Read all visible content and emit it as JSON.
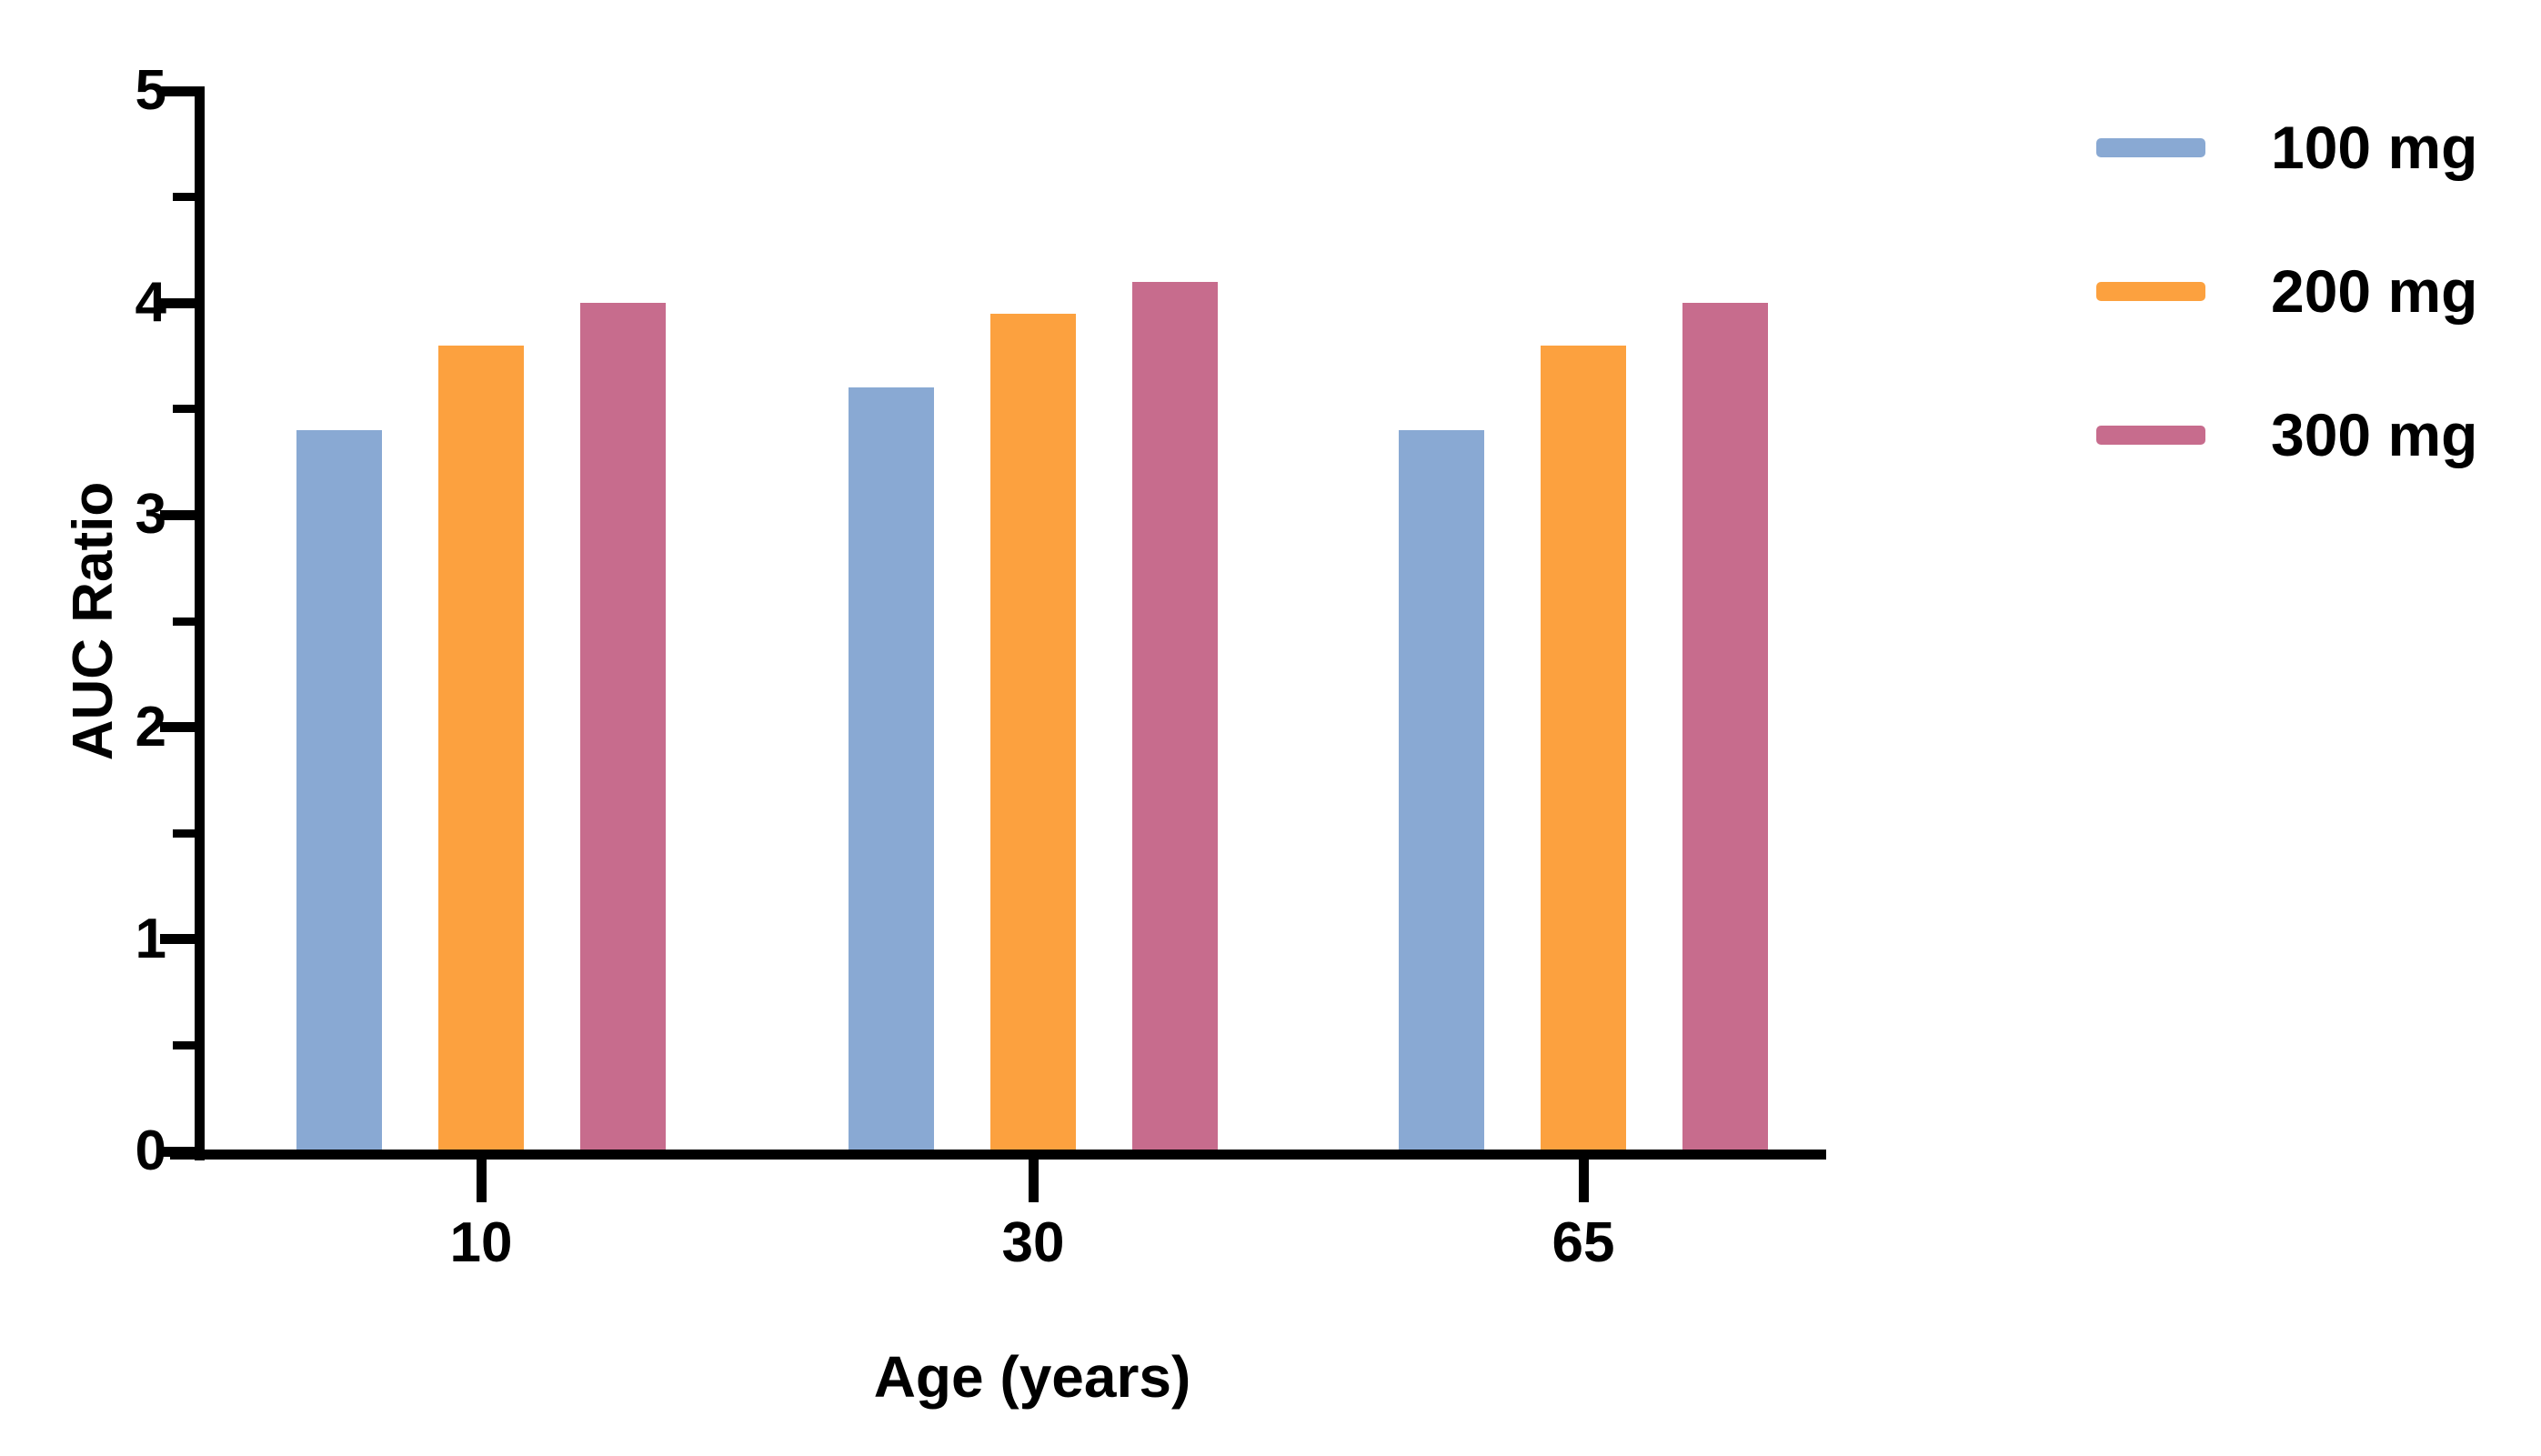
{
  "chart_data": {
    "type": "bar",
    "title": "",
    "xlabel": "Age (years)",
    "ylabel": "AUC Ratio",
    "categories": [
      "10",
      "30",
      "65"
    ],
    "series": [
      {
        "name": "100 mg",
        "color": "#89A9D3",
        "values": [
          3.4,
          3.6,
          3.4
        ]
      },
      {
        "name": "200 mg",
        "color": "#FCA13F",
        "values": [
          3.8,
          3.95,
          3.8
        ]
      },
      {
        "name": "300 mg",
        "color": "#C76C8D",
        "values": [
          4.0,
          4.1,
          4.0
        ]
      }
    ],
    "ylim": [
      0,
      5
    ],
    "yticks": [
      "0",
      "1",
      "2",
      "3",
      "4",
      "5"
    ],
    "minor_tick_step": 0.5,
    "grid": false,
    "legend_position": "right",
    "background": "#FFFFFF",
    "axis_color": "#000000"
  }
}
